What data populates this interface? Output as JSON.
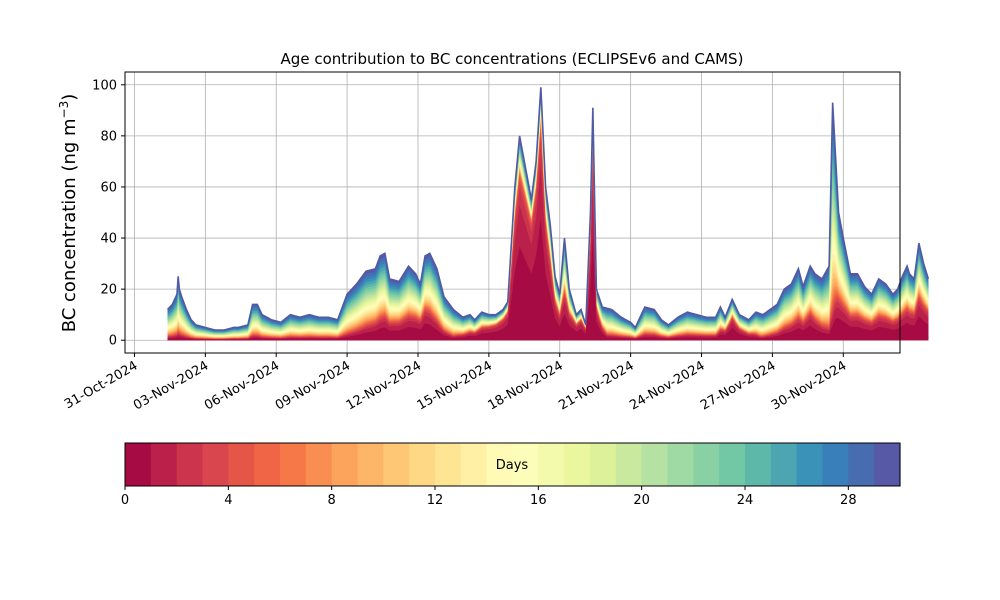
{
  "chart_data": [
    {
      "type": "area",
      "subtype": "stacked",
      "title": "Age contribution to BC concentrations (ECLIPSEv6 and CAMS)",
      "ylabel_main": "BC concentration (ng m",
      "ylabel_sup": "−3",
      "ylabel_close": ")",
      "xlabel": "",
      "x_is_date": true,
      "x_start": "01-Nov-2024",
      "x_end": "02-Dec-2024",
      "xlim_days": [
        -0.4,
        32.4
      ],
      "xtick_days": [
        0,
        3,
        6,
        9,
        12,
        15,
        18,
        21,
        24,
        27,
        30
      ],
      "xtick_labels": [
        "31-Oct-2024",
        "03-Nov-2024",
        "06-Nov-2024",
        "09-Nov-2024",
        "12-Nov-2024",
        "15-Nov-2024",
        "18-Nov-2024",
        "21-Nov-2024",
        "24-Nov-2024",
        "27-Nov-2024",
        "30-Nov-2024"
      ],
      "ylim": [
        -5,
        105
      ],
      "yticks": [
        0,
        20,
        40,
        60,
        80,
        100
      ],
      "ytick_labels": [
        "0",
        "20",
        "40",
        "60",
        "80",
        "100"
      ],
      "grid": true,
      "series_count": 30,
      "colormap": "Spectral",
      "total": [
        [
          1.4,
          12
        ],
        [
          1.6,
          14
        ],
        [
          1.8,
          18
        ],
        [
          1.85,
          25
        ],
        [
          1.9,
          20
        ],
        [
          2.0,
          17
        ],
        [
          2.2,
          12
        ],
        [
          2.4,
          8
        ],
        [
          2.6,
          6
        ],
        [
          3.0,
          5
        ],
        [
          3.4,
          4
        ],
        [
          3.8,
          4
        ],
        [
          4.2,
          5
        ],
        [
          4.4,
          5
        ],
        [
          4.8,
          6
        ],
        [
          5.0,
          14
        ],
        [
          5.2,
          14
        ],
        [
          5.4,
          10
        ],
        [
          5.8,
          8
        ],
        [
          6.2,
          7
        ],
        [
          6.6,
          10
        ],
        [
          7.0,
          9
        ],
        [
          7.4,
          10
        ],
        [
          7.8,
          9
        ],
        [
          8.2,
          9
        ],
        [
          8.6,
          8
        ],
        [
          9.0,
          18
        ],
        [
          9.4,
          22
        ],
        [
          9.8,
          27
        ],
        [
          10.2,
          28
        ],
        [
          10.4,
          33
        ],
        [
          10.6,
          34
        ],
        [
          10.8,
          24
        ],
        [
          11.2,
          23
        ],
        [
          11.6,
          29
        ],
        [
          11.9,
          26
        ],
        [
          12.1,
          22
        ],
        [
          12.3,
          33
        ],
        [
          12.5,
          34
        ],
        [
          12.8,
          28
        ],
        [
          13.1,
          17
        ],
        [
          13.5,
          12
        ],
        [
          13.9,
          9
        ],
        [
          14.2,
          10
        ],
        [
          14.4,
          8
        ],
        [
          14.7,
          11
        ],
        [
          15.0,
          10
        ],
        [
          15.3,
          10
        ],
        [
          15.6,
          12
        ],
        [
          15.8,
          15
        ],
        [
          16.1,
          60
        ],
        [
          16.3,
          80
        ],
        [
          16.5,
          70
        ],
        [
          16.8,
          55
        ],
        [
          17.0,
          70
        ],
        [
          17.2,
          99
        ],
        [
          17.4,
          60
        ],
        [
          17.6,
          45
        ],
        [
          17.8,
          25
        ],
        [
          18.0,
          18
        ],
        [
          18.2,
          40
        ],
        [
          18.4,
          20
        ],
        [
          18.7,
          10
        ],
        [
          18.9,
          12
        ],
        [
          19.1,
          6
        ],
        [
          19.3,
          50
        ],
        [
          19.4,
          91
        ],
        [
          19.55,
          20
        ],
        [
          19.8,
          13
        ],
        [
          20.2,
          12
        ],
        [
          20.6,
          9
        ],
        [
          21.0,
          7
        ],
        [
          21.2,
          5
        ],
        [
          21.6,
          13
        ],
        [
          22.0,
          12
        ],
        [
          22.3,
          8
        ],
        [
          22.6,
          6
        ],
        [
          23.0,
          9
        ],
        [
          23.4,
          11
        ],
        [
          23.8,
          10
        ],
        [
          24.2,
          9
        ],
        [
          24.6,
          9
        ],
        [
          24.8,
          13
        ],
        [
          25.0,
          9
        ],
        [
          25.3,
          16
        ],
        [
          25.6,
          10
        ],
        [
          26.0,
          8
        ],
        [
          26.3,
          11
        ],
        [
          26.6,
          10
        ],
        [
          26.9,
          12
        ],
        [
          27.2,
          14
        ],
        [
          27.5,
          20
        ],
        [
          27.8,
          22
        ],
        [
          28.1,
          28
        ],
        [
          28.3,
          21
        ],
        [
          28.6,
          29
        ],
        [
          28.8,
          26
        ],
        [
          29.1,
          24
        ],
        [
          29.4,
          29
        ],
        [
          29.55,
          93
        ],
        [
          29.8,
          50
        ],
        [
          30.0,
          40
        ],
        [
          30.3,
          26
        ],
        [
          30.6,
          26
        ],
        [
          30.9,
          21
        ],
        [
          31.2,
          18
        ],
        [
          31.5,
          24
        ],
        [
          31.8,
          22
        ],
        [
          32.1,
          18
        ],
        [
          32.3,
          20
        ],
        [
          32.5,
          25
        ],
        [
          32.7,
          29
        ],
        [
          32.8,
          26
        ],
        [
          33.0,
          24
        ],
        [
          33.2,
          38
        ],
        [
          33.4,
          30
        ],
        [
          33.6,
          24
        ]
      ],
      "young_fraction": [
        [
          1.4,
          0.1
        ],
        [
          9.0,
          0.12
        ],
        [
          10.5,
          0.25
        ],
        [
          12.3,
          0.35
        ],
        [
          13.5,
          0.12
        ],
        [
          16.1,
          0.8
        ],
        [
          17.2,
          0.85
        ],
        [
          18.2,
          0.45
        ],
        [
          19.4,
          0.8
        ],
        [
          20.0,
          0.15
        ],
        [
          24.6,
          0.2
        ],
        [
          25.3,
          0.55
        ],
        [
          26.5,
          0.12
        ],
        [
          28.6,
          0.35
        ],
        [
          29.55,
          0.1
        ],
        [
          29.8,
          0.3
        ],
        [
          30.3,
          0.35
        ],
        [
          32.5,
          0.4
        ],
        [
          33.6,
          0.45
        ]
      ],
      "colorbar": {
        "label": "Days",
        "range": [
          0,
          30
        ],
        "ticks": [
          0,
          4,
          8,
          12,
          16,
          20,
          24,
          28
        ],
        "tick_labels": [
          "0",
          "4",
          "8",
          "12",
          "16",
          "20",
          "24",
          "28"
        ],
        "segments": 30
      }
    }
  ]
}
